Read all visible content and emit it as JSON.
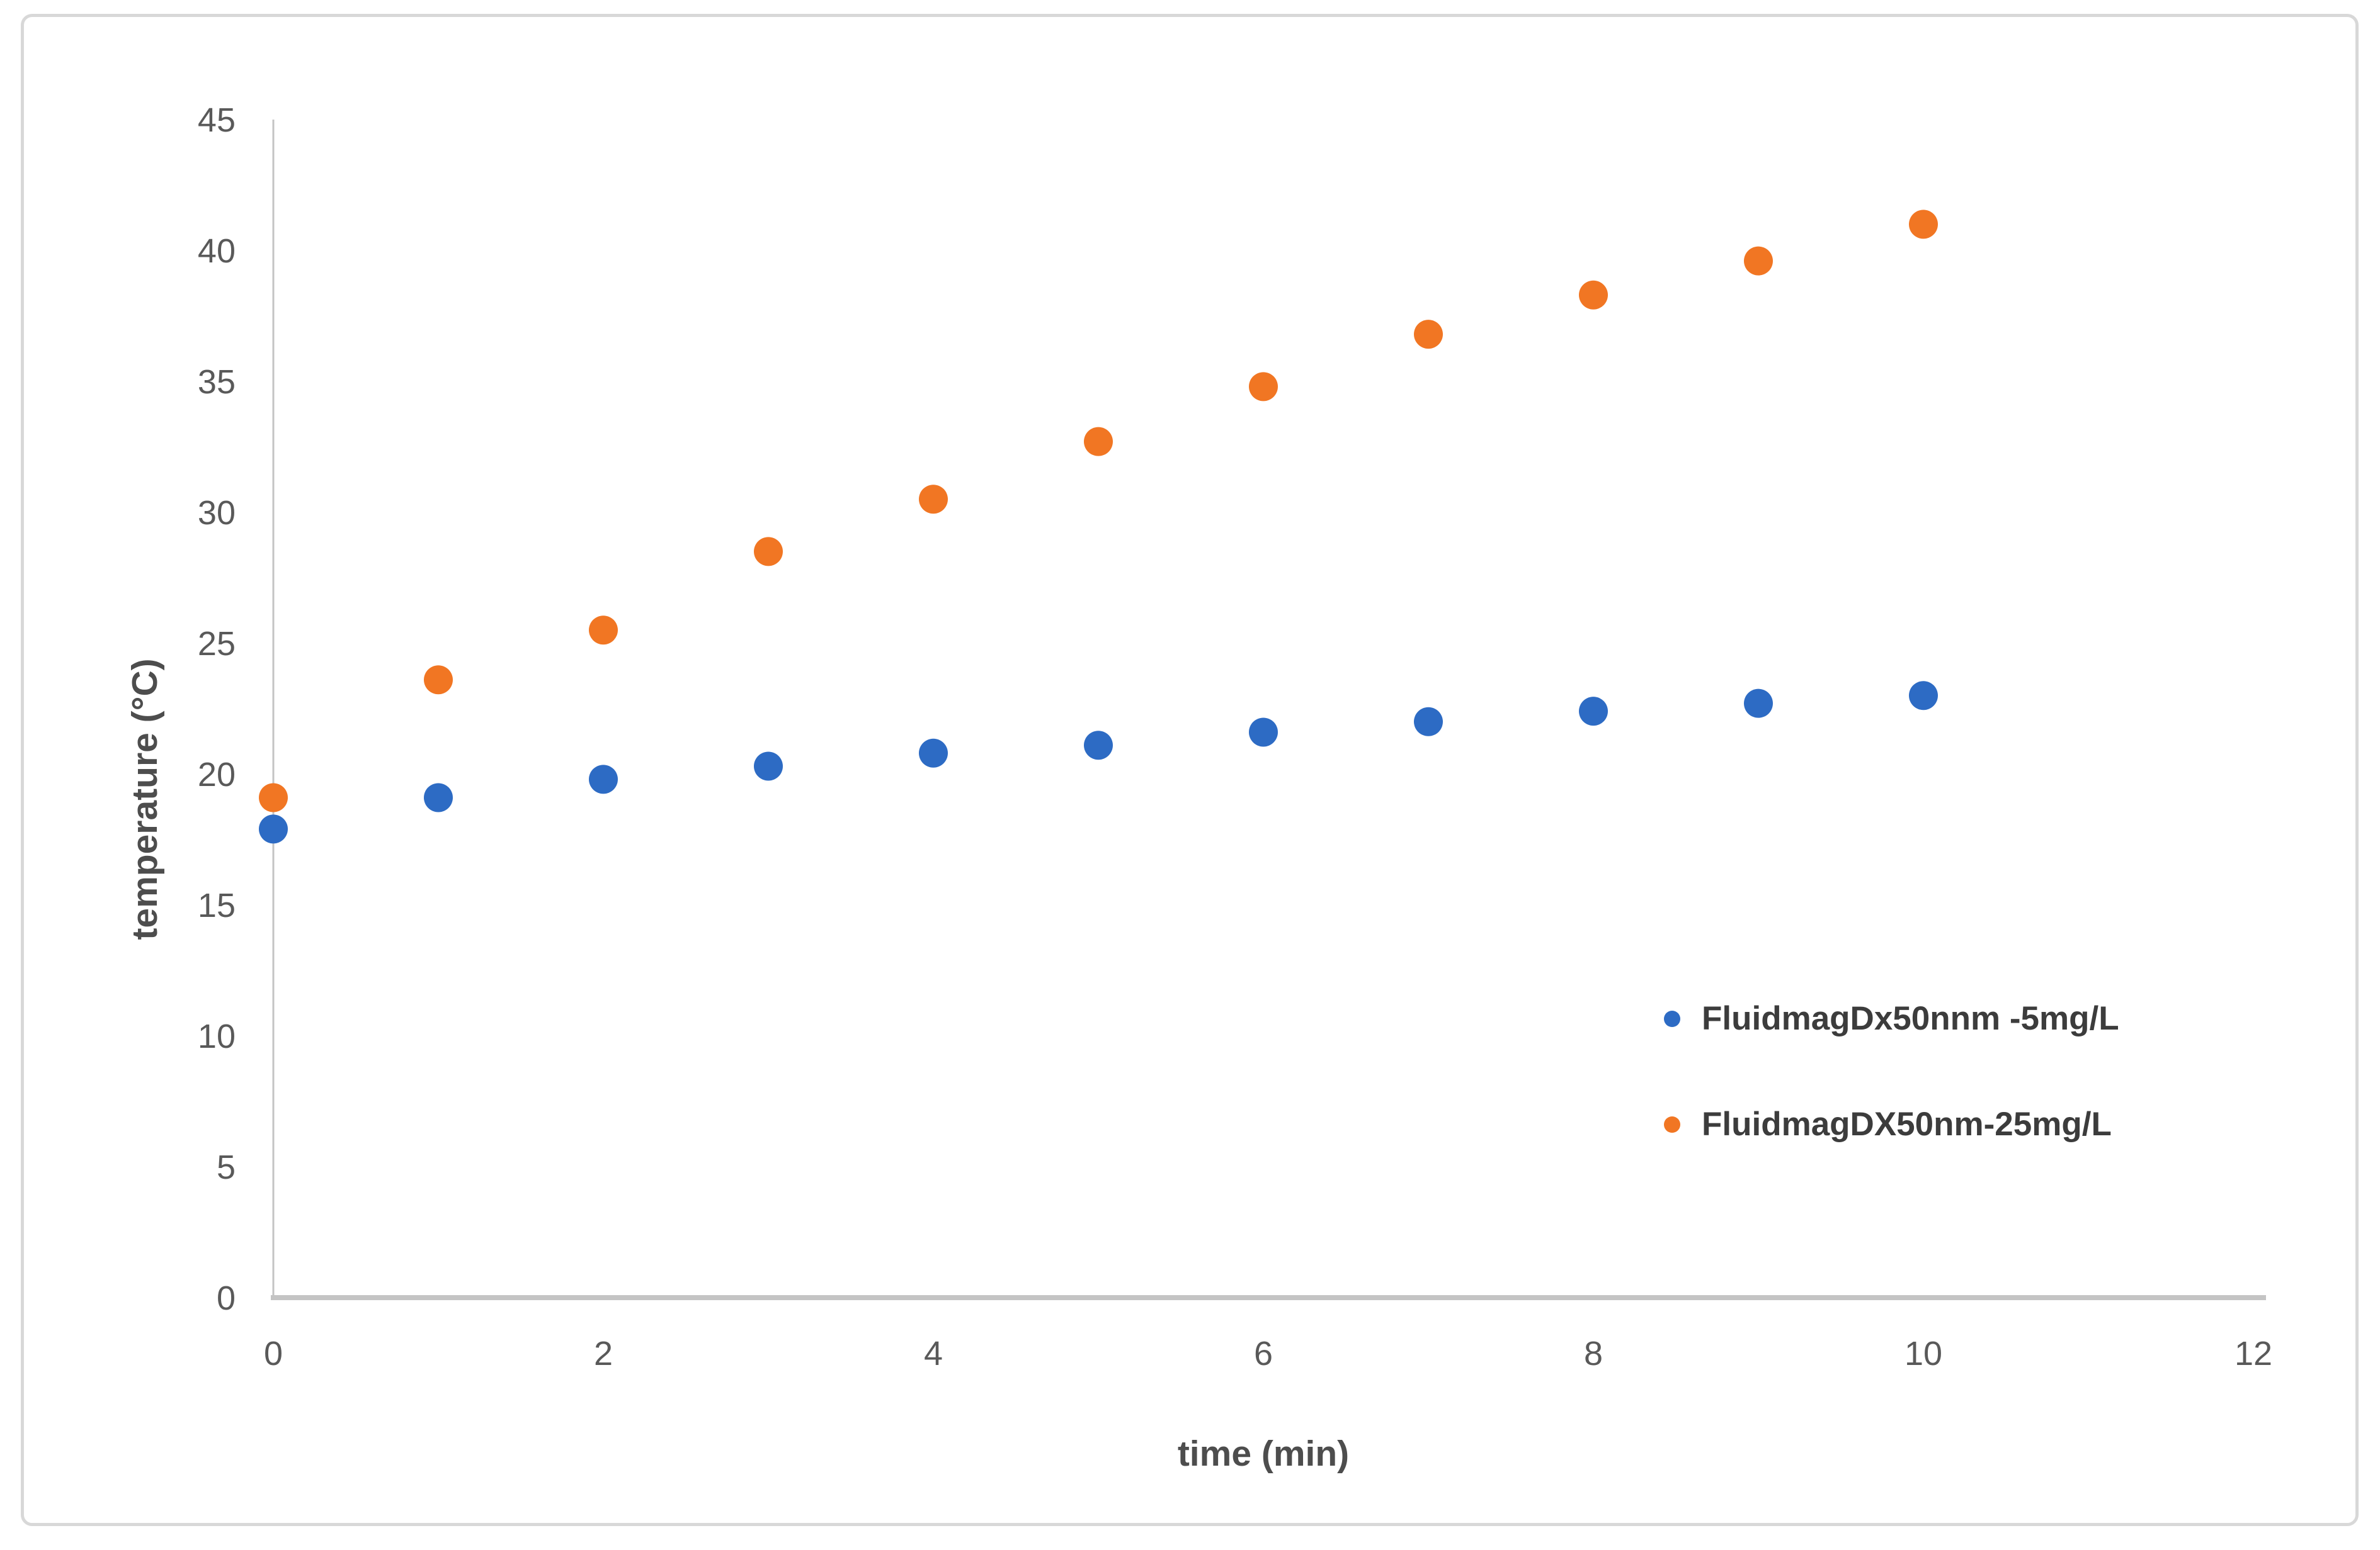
{
  "chart_data": {
    "type": "scatter",
    "title": "",
    "xlabel": "time (min)",
    "ylabel": "temperature (°C)",
    "x": [
      0,
      1,
      2,
      3,
      4,
      5,
      6,
      7,
      8,
      9,
      10
    ],
    "series": [
      {
        "name": "FluidmagDx50nnm -5mg/L",
        "color": "#2d6bc4",
        "values": [
          17.9,
          19.1,
          19.8,
          20.3,
          20.8,
          21.1,
          21.6,
          22.0,
          22.4,
          22.7,
          23.0
        ]
      },
      {
        "name": "FluidmagDX50nm-25mg/L",
        "color": "#f17623",
        "values": [
          19.1,
          23.6,
          25.5,
          28.5,
          30.5,
          32.7,
          34.8,
          36.8,
          38.3,
          39.6,
          41.0
        ]
      }
    ],
    "xlim": [
      0,
      12
    ],
    "ylim": [
      0,
      45
    ],
    "x_ticks": [
      0,
      2,
      4,
      6,
      8,
      10,
      12
    ],
    "y_ticks": [
      0,
      5,
      10,
      15,
      20,
      25,
      30,
      35,
      40,
      45
    ],
    "grid": false,
    "legend_position": "right-center",
    "marker": "circle",
    "axis_color": "#c4c4c4",
    "tick_label_color": "#595959"
  }
}
